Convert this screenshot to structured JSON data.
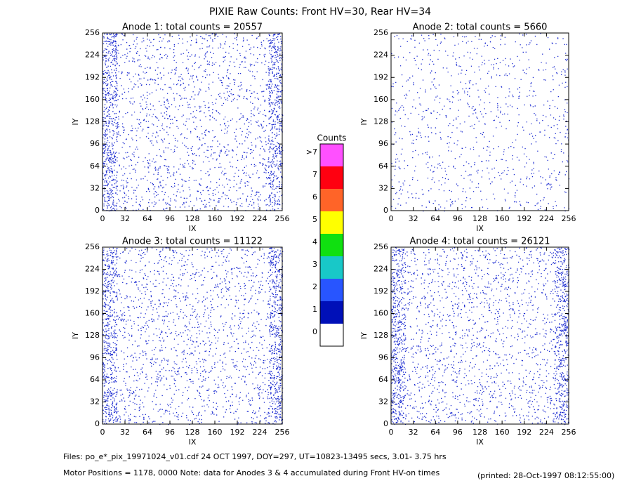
{
  "title": "PIXIE Raw Counts:  Front HV=30, Rear HV=34",
  "chart_data": [
    {
      "type": "heatmap",
      "title": "Anode 1: total counts = 20557",
      "xlabel": "IX",
      "ylabel": "IY",
      "xlim": [
        0,
        256
      ],
      "ylim": [
        0,
        256
      ],
      "xticks": [
        0,
        32,
        64,
        96,
        128,
        160,
        192,
        224,
        256
      ],
      "yticks": [
        0,
        32,
        64,
        96,
        128,
        160,
        192,
        224,
        256
      ]
    },
    {
      "type": "heatmap",
      "title": "Anode 2: total counts = 5660",
      "xlabel": "IX",
      "ylabel": "IY",
      "xlim": [
        0,
        256
      ],
      "ylim": [
        0,
        256
      ],
      "xticks": [
        0,
        32,
        64,
        96,
        128,
        160,
        192,
        224,
        256
      ],
      "yticks": [
        0,
        32,
        64,
        96,
        128,
        160,
        192,
        224,
        256
      ]
    },
    {
      "type": "heatmap",
      "title": "Anode 3: total counts = 11122",
      "xlabel": "IX",
      "ylabel": "IY",
      "xlim": [
        0,
        256
      ],
      "ylim": [
        0,
        256
      ],
      "xticks": [
        0,
        32,
        64,
        96,
        128,
        160,
        192,
        224,
        256
      ],
      "yticks": [
        0,
        32,
        64,
        96,
        128,
        160,
        192,
        224,
        256
      ]
    },
    {
      "type": "heatmap",
      "title": "Anode 4: total counts = 26121",
      "xlabel": "IX",
      "ylabel": "IY",
      "xlim": [
        0,
        256
      ],
      "ylim": [
        0,
        256
      ],
      "xticks": [
        0,
        32,
        64,
        96,
        128,
        160,
        192,
        224,
        256
      ],
      "yticks": [
        0,
        32,
        64,
        96,
        128,
        160,
        192,
        224,
        256
      ]
    }
  ],
  "colorbar": {
    "title": "Counts",
    "labels": [
      "0",
      "1",
      "2",
      "3",
      "4",
      "5",
      "6",
      "7",
      ">7"
    ],
    "colors": [
      "#ffffff",
      "#0010b8",
      "#2855ff",
      "#18c8c8",
      "#10e010",
      "#ffff00",
      "#ff6428",
      "#ff0010",
      "#ff50ff"
    ]
  },
  "footer": {
    "files": "Files: po_e*_pix_19971024_v01.cdf    24 OCT 1997, DOY=297, UT=10823-13495 secs,  3.01- 3.75 hrs",
    "motor": "Motor Positions = 1178, 0000    Note: data for Anodes 3 & 4 accumulated during Front HV-on times",
    "printed": "(printed: 28-Oct-1997 08:12:55:00)"
  }
}
